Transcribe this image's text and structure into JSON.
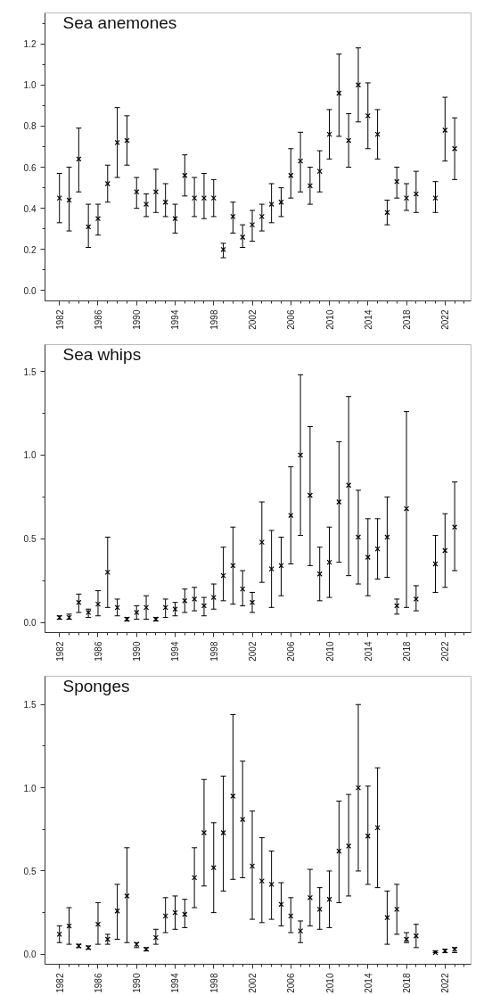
{
  "chart_data": [
    {
      "type": "scatter",
      "title": "Sea anemones",
      "marker": "cross",
      "grid": false,
      "x": [
        1982,
        1983,
        1984,
        1985,
        1986,
        1987,
        1988,
        1989,
        1990,
        1991,
        1992,
        1993,
        1994,
        1995,
        1996,
        1997,
        1998,
        1999,
        2000,
        2001,
        2002,
        2003,
        2004,
        2005,
        2006,
        2007,
        2008,
        2009,
        2010,
        2011,
        2012,
        2013,
        2014,
        2015,
        2016,
        2017,
        2018,
        2019,
        2020,
        2021,
        2022,
        2023
      ],
      "xlim": [
        1980.5,
        2024.7
      ],
      "xticks": [
        1982,
        {
          "value": 1983,
          "label": null
        },
        {
          "value": 1984,
          "label": null
        },
        {
          "value": 1985,
          "label": null
        },
        1986,
        {
          "value": 1987,
          "label": null
        },
        {
          "value": 1988,
          "label": null
        },
        {
          "value": 1989,
          "label": null
        },
        1990,
        {
          "value": 1991,
          "label": null
        },
        {
          "value": 1992,
          "label": null
        },
        {
          "value": 1993,
          "label": null
        },
        1994,
        {
          "value": 1995,
          "label": null
        },
        {
          "value": 1996,
          "label": null
        },
        {
          "value": 1997,
          "label": null
        },
        1998,
        {
          "value": 1999,
          "label": null
        },
        {
          "value": 2000,
          "label": null
        },
        {
          "value": 2001,
          "label": null
        },
        2002,
        {
          "value": 2003,
          "label": null
        },
        {
          "value": 2004,
          "label": null
        },
        {
          "value": 2005,
          "label": null
        },
        2006,
        {
          "value": 2007,
          "label": null
        },
        {
          "value": 2008,
          "label": null
        },
        {
          "value": 2009,
          "label": null
        },
        2010,
        {
          "value": 2011,
          "label": null
        },
        {
          "value": 2012,
          "label": null
        },
        {
          "value": 2013,
          "label": null
        },
        2014,
        {
          "value": 2015,
          "label": null
        },
        {
          "value": 2016,
          "label": null
        },
        {
          "value": 2017,
          "label": null
        },
        2018,
        {
          "value": 2019,
          "label": null
        },
        {
          "value": 2020,
          "label": null
        },
        {
          "value": 2021,
          "label": null
        },
        2022,
        {
          "value": 2023,
          "label": null
        },
        {
          "value": 2024,
          "label": null
        }
      ],
      "ylim": [
        -0.05,
        1.35
      ],
      "yticks": [
        {
          "value": 0,
          "label": "0.0"
        },
        {
          "value": 0.1,
          "label": null
        },
        {
          "value": 0.2,
          "label": "0.2"
        },
        {
          "value": 0.3,
          "label": null
        },
        {
          "value": 0.4,
          "label": "0.4"
        },
        {
          "value": 0.5,
          "label": null
        },
        {
          "value": 0.6,
          "label": "0.6"
        },
        {
          "value": 0.7,
          "label": null
        },
        {
          "value": 0.8,
          "label": "0.8"
        },
        {
          "value": 0.9,
          "label": null
        },
        {
          "value": 1.0,
          "label": "1.0"
        },
        {
          "value": 1.1,
          "label": null
        },
        {
          "value": 1.2,
          "label": "1.2"
        },
        {
          "value": 1.3,
          "label": null
        }
      ],
      "series": [
        {
          "color": "#000000",
          "values": [
            0.45,
            0.44,
            0.64,
            0.31,
            0.35,
            0.52,
            0.72,
            0.73,
            0.48,
            0.42,
            0.48,
            0.43,
            0.35,
            0.56,
            0.45,
            0.45,
            0.45,
            0.2,
            0.36,
            0.26,
            0.32,
            0.36,
            0.42,
            0.43,
            0.56,
            0.63,
            0.51,
            0.58,
            0.76,
            0.96,
            0.73,
            1.0,
            0.85,
            0.76,
            0.38,
            0.53,
            0.45,
            0.47,
            null,
            0.45,
            0.78,
            0.69
          ],
          "errors": [
            [
              0.33,
              0.57
            ],
            [
              0.29,
              0.6
            ],
            [
              0.48,
              0.79
            ],
            [
              0.21,
              0.42
            ],
            [
              0.27,
              0.42
            ],
            [
              0.43,
              0.61
            ],
            [
              0.55,
              0.89
            ],
            [
              0.61,
              0.85
            ],
            [
              0.4,
              0.55
            ],
            [
              0.36,
              0.47
            ],
            [
              0.38,
              0.59
            ],
            [
              0.36,
              0.52
            ],
            [
              0.28,
              0.42
            ],
            [
              0.46,
              0.66
            ],
            [
              0.36,
              0.55
            ],
            [
              0.35,
              0.57
            ],
            [
              0.36,
              0.54
            ],
            [
              0.16,
              0.23
            ],
            [
              0.28,
              0.43
            ],
            [
              0.21,
              0.32
            ],
            [
              0.24,
              0.39
            ],
            [
              0.29,
              0.42
            ],
            [
              0.33,
              0.52
            ],
            [
              0.36,
              0.5
            ],
            [
              0.45,
              0.69
            ],
            [
              0.48,
              0.77
            ],
            [
              0.42,
              0.6
            ],
            [
              0.48,
              0.68
            ],
            [
              0.64,
              0.88
            ],
            [
              0.75,
              1.15
            ],
            [
              0.6,
              0.86
            ],
            [
              0.82,
              1.18
            ],
            [
              0.69,
              1.01
            ],
            [
              0.64,
              0.88
            ],
            [
              0.32,
              0.44
            ],
            [
              0.45,
              0.6
            ],
            [
              0.39,
              0.52
            ],
            [
              0.38,
              0.58
            ],
            null,
            [
              0.38,
              0.53
            ],
            [
              0.63,
              0.94
            ],
            [
              0.54,
              0.84
            ]
          ]
        }
      ]
    },
    {
      "type": "scatter",
      "title": "Sea whips",
      "marker": "cross",
      "grid": false,
      "x": [
        1982,
        1983,
        1984,
        1985,
        1986,
        1987,
        1988,
        1989,
        1990,
        1991,
        1992,
        1993,
        1994,
        1995,
        1996,
        1997,
        1998,
        1999,
        2000,
        2001,
        2002,
        2003,
        2004,
        2005,
        2006,
        2007,
        2008,
        2009,
        2010,
        2011,
        2012,
        2013,
        2014,
        2015,
        2016,
        2017,
        2018,
        2019,
        2020,
        2021,
        2022,
        2023
      ],
      "xlim": [
        1980.5,
        2024.7
      ],
      "xticks": [
        1982,
        {
          "value": 1983,
          "label": null
        },
        {
          "value": 1984,
          "label": null
        },
        {
          "value": 1985,
          "label": null
        },
        1986,
        {
          "value": 1987,
          "label": null
        },
        {
          "value": 1988,
          "label": null
        },
        {
          "value": 1989,
          "label": null
        },
        1990,
        {
          "value": 1991,
          "label": null
        },
        {
          "value": 1992,
          "label": null
        },
        {
          "value": 1993,
          "label": null
        },
        1994,
        {
          "value": 1995,
          "label": null
        },
        {
          "value": 1996,
          "label": null
        },
        {
          "value": 1997,
          "label": null
        },
        1998,
        {
          "value": 1999,
          "label": null
        },
        {
          "value": 2000,
          "label": null
        },
        {
          "value": 2001,
          "label": null
        },
        2002,
        {
          "value": 2003,
          "label": null
        },
        {
          "value": 2004,
          "label": null
        },
        {
          "value": 2005,
          "label": null
        },
        2006,
        {
          "value": 2007,
          "label": null
        },
        {
          "value": 2008,
          "label": null
        },
        {
          "value": 2009,
          "label": null
        },
        2010,
        {
          "value": 2011,
          "label": null
        },
        {
          "value": 2012,
          "label": null
        },
        {
          "value": 2013,
          "label": null
        },
        2014,
        {
          "value": 2015,
          "label": null
        },
        {
          "value": 2016,
          "label": null
        },
        {
          "value": 2017,
          "label": null
        },
        2018,
        {
          "value": 2019,
          "label": null
        },
        {
          "value": 2020,
          "label": null
        },
        {
          "value": 2021,
          "label": null
        },
        2022,
        {
          "value": 2023,
          "label": null
        },
        {
          "value": 2024,
          "label": null
        }
      ],
      "ylim": [
        -0.06,
        1.66
      ],
      "yticks": [
        {
          "value": 0,
          "label": "0.0"
        },
        {
          "value": 0.25,
          "label": null
        },
        {
          "value": 0.5,
          "label": "0.5"
        },
        {
          "value": 0.75,
          "label": null
        },
        {
          "value": 1.0,
          "label": "1.0"
        },
        {
          "value": 1.25,
          "label": null
        },
        {
          "value": 1.5,
          "label": "1.5"
        }
      ],
      "series": [
        {
          "color": "#000000",
          "values": [
            0.03,
            0.03,
            0.12,
            0.06,
            0.11,
            0.3,
            0.09,
            0.02,
            0.06,
            0.09,
            0.02,
            0.09,
            0.08,
            0.13,
            0.14,
            0.1,
            0.15,
            0.28,
            0.34,
            0.2,
            0.12,
            0.48,
            0.32,
            0.34,
            0.64,
            1.0,
            0.76,
            0.29,
            0.36,
            0.72,
            0.82,
            0.51,
            0.39,
            0.44,
            0.51,
            0.1,
            0.68,
            0.14,
            null,
            0.35,
            0.43,
            0.57
          ],
          "errors": [
            [
              0.02,
              0.04
            ],
            [
              0.02,
              0.05
            ],
            [
              0.06,
              0.17
            ],
            [
              0.03,
              0.08
            ],
            [
              0.04,
              0.19
            ],
            [
              0.09,
              0.51
            ],
            [
              0.04,
              0.14
            ],
            [
              0.01,
              0.03
            ],
            [
              0.02,
              0.1
            ],
            [
              0.02,
              0.16
            ],
            [
              0.01,
              0.03
            ],
            [
              0.03,
              0.14
            ],
            [
              0.04,
              0.12
            ],
            [
              0.06,
              0.2
            ],
            [
              0.07,
              0.21
            ],
            [
              0.04,
              0.15
            ],
            [
              0.08,
              0.23
            ],
            [
              0.13,
              0.45
            ],
            [
              0.11,
              0.57
            ],
            [
              0.1,
              0.31
            ],
            [
              0.06,
              0.18
            ],
            [
              0.24,
              0.72
            ],
            [
              0.09,
              0.55
            ],
            [
              0.16,
              0.51
            ],
            [
              0.35,
              0.93
            ],
            [
              0.52,
              1.48
            ],
            [
              0.34,
              1.17
            ],
            [
              0.13,
              0.45
            ],
            [
              0.15,
              0.57
            ],
            [
              0.36,
              1.08
            ],
            [
              0.28,
              1.35
            ],
            [
              0.23,
              0.79
            ],
            [
              0.16,
              0.62
            ],
            [
              0.26,
              0.62
            ],
            [
              0.27,
              0.75
            ],
            [
              0.05,
              0.14
            ],
            [
              0.09,
              1.26
            ],
            [
              0.07,
              0.22
            ],
            null,
            [
              0.18,
              0.52
            ],
            [
              0.21,
              0.65
            ],
            [
              0.31,
              0.84
            ]
          ]
        }
      ]
    },
    {
      "type": "scatter",
      "title": "Sponges",
      "marker": "cross",
      "grid": false,
      "x": [
        1982,
        1983,
        1984,
        1985,
        1986,
        1987,
        1988,
        1989,
        1990,
        1991,
        1992,
        1993,
        1994,
        1995,
        1996,
        1997,
        1998,
        1999,
        2000,
        2001,
        2002,
        2003,
        2004,
        2005,
        2006,
        2007,
        2008,
        2009,
        2010,
        2011,
        2012,
        2013,
        2014,
        2015,
        2016,
        2017,
        2018,
        2019,
        2020,
        2021,
        2022,
        2023
      ],
      "xlim": [
        1980.5,
        2024.7
      ],
      "xticks": [
        1982,
        {
          "value": 1983,
          "label": null
        },
        {
          "value": 1984,
          "label": null
        },
        {
          "value": 1985,
          "label": null
        },
        1986,
        {
          "value": 1987,
          "label": null
        },
        {
          "value": 1988,
          "label": null
        },
        {
          "value": 1989,
          "label": null
        },
        1990,
        {
          "value": 1991,
          "label": null
        },
        {
          "value": 1992,
          "label": null
        },
        {
          "value": 1993,
          "label": null
        },
        1994,
        {
          "value": 1995,
          "label": null
        },
        {
          "value": 1996,
          "label": null
        },
        {
          "value": 1997,
          "label": null
        },
        1998,
        {
          "value": 1999,
          "label": null
        },
        {
          "value": 2000,
          "label": null
        },
        {
          "value": 2001,
          "label": null
        },
        2002,
        {
          "value": 2003,
          "label": null
        },
        {
          "value": 2004,
          "label": null
        },
        {
          "value": 2005,
          "label": null
        },
        2006,
        {
          "value": 2007,
          "label": null
        },
        {
          "value": 2008,
          "label": null
        },
        {
          "value": 2009,
          "label": null
        },
        2010,
        {
          "value": 2011,
          "label": null
        },
        {
          "value": 2012,
          "label": null
        },
        {
          "value": 2013,
          "label": null
        },
        2014,
        {
          "value": 2015,
          "label": null
        },
        {
          "value": 2016,
          "label": null
        },
        {
          "value": 2017,
          "label": null
        },
        2018,
        {
          "value": 2019,
          "label": null
        },
        {
          "value": 2020,
          "label": null
        },
        {
          "value": 2021,
          "label": null
        },
        2022,
        {
          "value": 2023,
          "label": null
        },
        {
          "value": 2024,
          "label": null
        }
      ],
      "ylim": [
        -0.06,
        1.67
      ],
      "yticks": [
        {
          "value": 0,
          "label": "0.0"
        },
        {
          "value": 0.25,
          "label": null
        },
        {
          "value": 0.5,
          "label": "0.5"
        },
        {
          "value": 0.75,
          "label": null
        },
        {
          "value": 1.0,
          "label": "1.0"
        },
        {
          "value": 1.25,
          "label": null
        },
        {
          "value": 1.5,
          "label": "1.5"
        }
      ],
      "series": [
        {
          "color": "#000000",
          "values": [
            0.12,
            0.17,
            0.05,
            0.04,
            0.18,
            0.09,
            0.26,
            0.35,
            0.06,
            0.03,
            0.1,
            0.23,
            0.25,
            0.24,
            0.46,
            0.73,
            0.52,
            0.73,
            0.95,
            0.81,
            0.53,
            0.44,
            0.42,
            0.3,
            0.23,
            0.14,
            0.34,
            0.27,
            0.33,
            0.62,
            0.65,
            1.0,
            0.71,
            0.76,
            0.22,
            0.27,
            0.09,
            0.11,
            null,
            0.01,
            0.02,
            0.03
          ],
          "errors": [
            [
              0.07,
              0.17
            ],
            [
              0.06,
              0.28
            ],
            [
              0.04,
              0.06
            ],
            [
              0.03,
              0.05
            ],
            [
              0.06,
              0.31
            ],
            [
              0.06,
              0.12
            ],
            [
              0.09,
              0.42
            ],
            [
              0.07,
              0.64
            ],
            [
              0.04,
              0.07
            ],
            [
              0.02,
              0.04
            ],
            [
              0.06,
              0.15
            ],
            [
              0.13,
              0.34
            ],
            [
              0.15,
              0.35
            ],
            [
              0.16,
              0.33
            ],
            [
              0.28,
              0.64
            ],
            [
              0.41,
              1.05
            ],
            [
              0.25,
              0.79
            ],
            [
              0.38,
              1.07
            ],
            [
              0.45,
              1.44
            ],
            [
              0.46,
              1.16
            ],
            [
              0.21,
              0.86
            ],
            [
              0.19,
              0.7
            ],
            [
              0.21,
              0.62
            ],
            [
              0.17,
              0.43
            ],
            [
              0.13,
              0.34
            ],
            [
              0.07,
              0.2
            ],
            [
              0.17,
              0.51
            ],
            [
              0.15,
              0.4
            ],
            [
              0.16,
              0.5
            ],
            [
              0.31,
              0.92
            ],
            [
              0.35,
              0.96
            ],
            [
              0.5,
              1.5
            ],
            [
              0.42,
              1.01
            ],
            [
              0.4,
              1.12
            ],
            [
              0.06,
              0.38
            ],
            [
              0.12,
              0.42
            ],
            [
              0.07,
              0.13
            ],
            [
              0.04,
              0.18
            ],
            null,
            [
              0.01,
              0.02
            ],
            [
              0.01,
              0.03
            ],
            [
              0.01,
              0.04
            ]
          ]
        }
      ]
    }
  ]
}
